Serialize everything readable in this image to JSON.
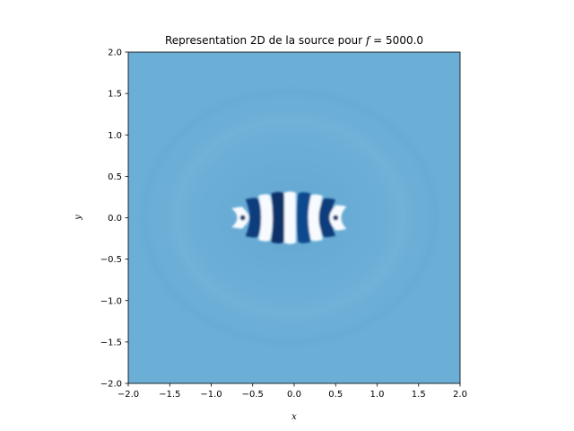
{
  "chart_data": {
    "type": "heatmap",
    "title_prefix": "Representation 2D de la source pour ",
    "title_var": "f",
    "title_suffix": " = 5000.0",
    "xlabel": "x",
    "ylabel": "y",
    "xlim": [
      -2.0,
      2.0
    ],
    "ylim": [
      -2.0,
      2.0
    ],
    "xticks": [
      -2.0,
      -1.5,
      -1.0,
      -0.5,
      0.0,
      0.5,
      1.0,
      1.5,
      2.0
    ],
    "yticks": [
      -2.0,
      -1.5,
      -1.0,
      -0.5,
      0.0,
      0.5,
      1.0,
      1.5,
      2.0
    ],
    "xtick_labels": [
      "−2.0",
      "−1.5",
      "−1.0",
      "−0.5",
      "0.0",
      "0.5",
      "1.0",
      "1.5",
      "2.0"
    ],
    "ytick_labels": [
      "−2.0",
      "−1.5",
      "−1.0",
      "−0.5",
      "0.0",
      "0.5",
      "1.0",
      "1.5",
      "2.0"
    ],
    "colormap": "Blues",
    "background_color": "#6baed6",
    "source_center": [
      -0.05,
      0.0
    ],
    "source_extent_x": [
      -0.62,
      0.52
    ],
    "pattern_stripes": [
      {
        "x": -0.6,
        "tone": "white"
      },
      {
        "x": -0.45,
        "tone": "dark"
      },
      {
        "x": -0.32,
        "tone": "white"
      },
      {
        "x": -0.18,
        "tone": "dark"
      },
      {
        "x": -0.05,
        "tone": "white"
      },
      {
        "x": 0.1,
        "tone": "dark"
      },
      {
        "x": 0.23,
        "tone": "white"
      },
      {
        "x": 0.36,
        "tone": "dark"
      },
      {
        "x": 0.48,
        "tone": "white"
      }
    ],
    "grid": false
  }
}
